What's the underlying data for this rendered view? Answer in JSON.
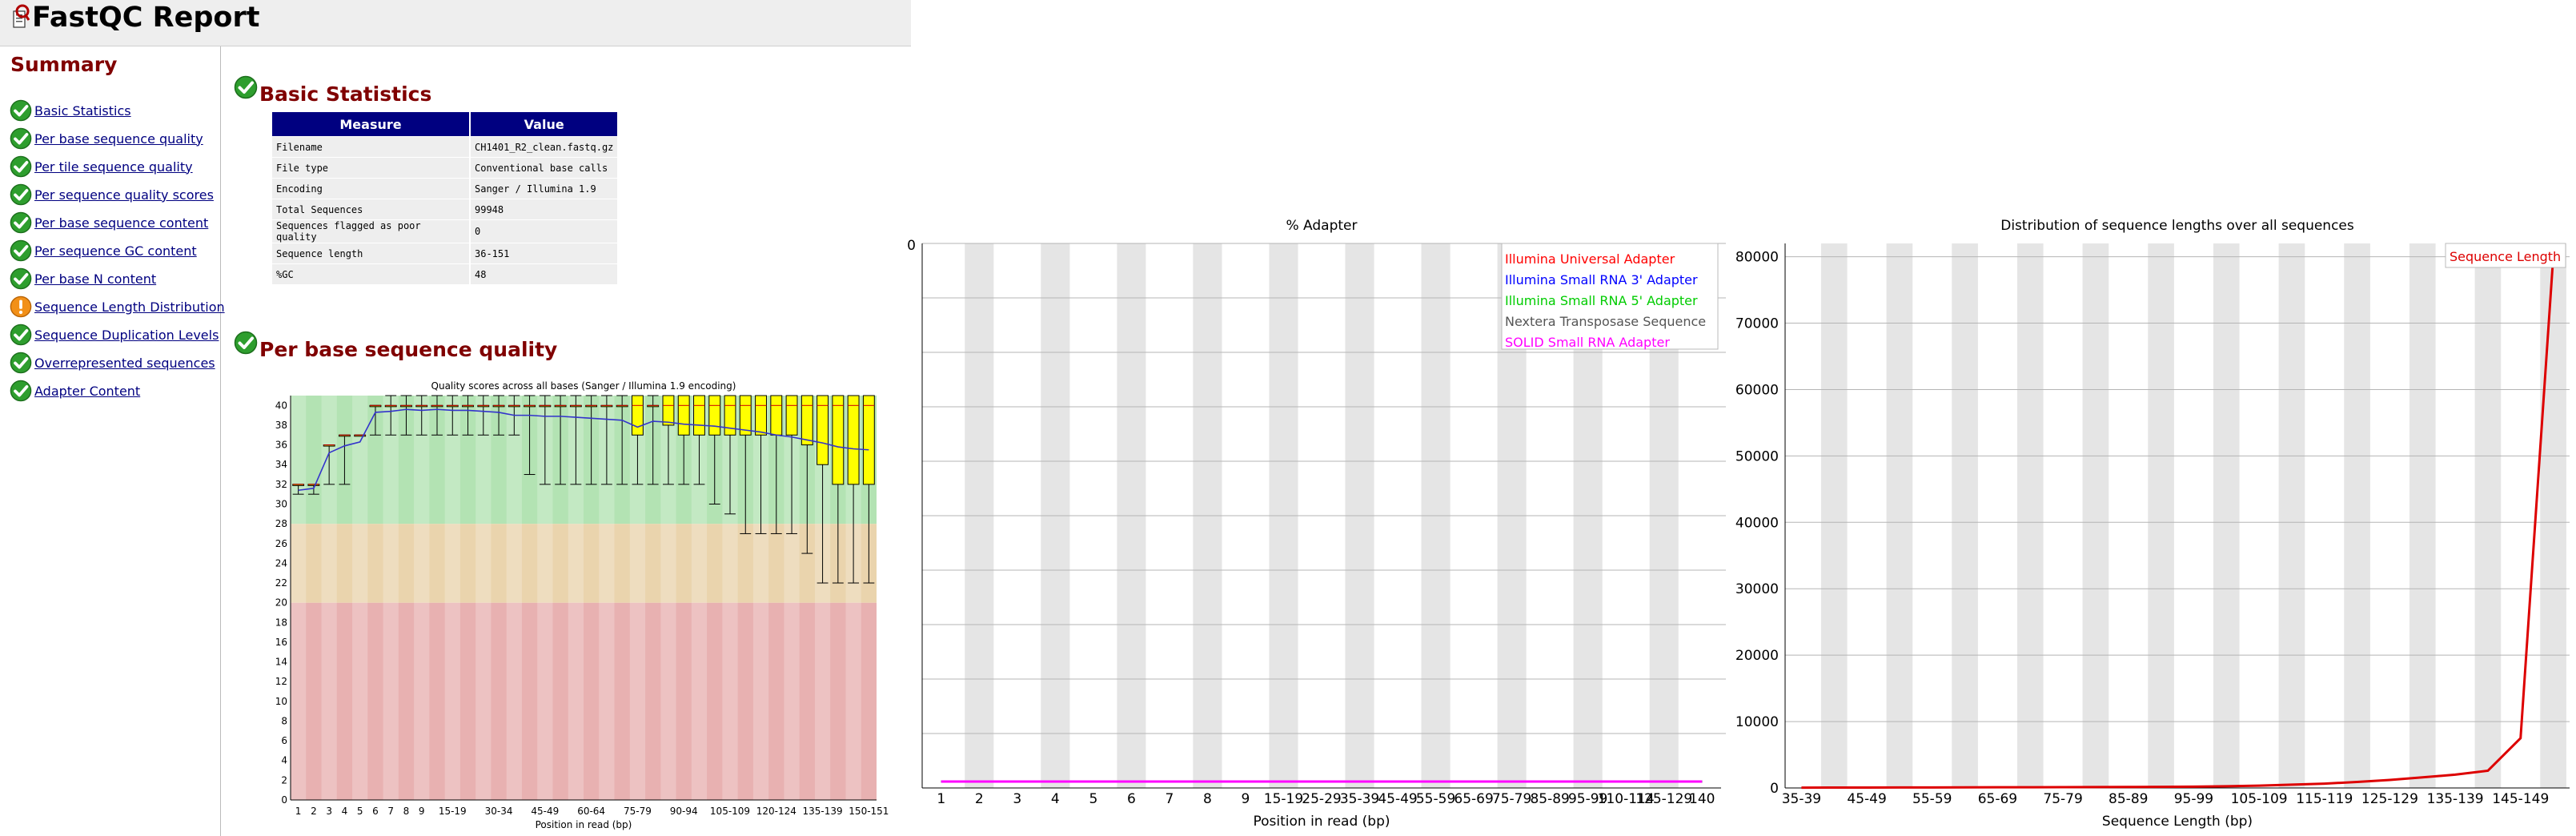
{
  "header": {
    "title": "FastQC Report"
  },
  "summary": {
    "title": "Summary",
    "items": [
      {
        "label": "Basic Statistics",
        "status": "pass"
      },
      {
        "label": "Per base sequence quality",
        "status": "pass"
      },
      {
        "label": "Per tile sequence quality",
        "status": "pass"
      },
      {
        "label": "Per sequence quality scores",
        "status": "pass"
      },
      {
        "label": "Per base sequence content",
        "status": "pass"
      },
      {
        "label": "Per sequence GC content",
        "status": "pass"
      },
      {
        "label": "Per base N content",
        "status": "pass"
      },
      {
        "label": "Sequence Length Distribution",
        "status": "warn"
      },
      {
        "label": "Sequence Duplication Levels",
        "status": "pass"
      },
      {
        "label": "Overrepresented sequences",
        "status": "pass"
      },
      {
        "label": "Adapter Content",
        "status": "pass"
      }
    ]
  },
  "basic_stats": {
    "title": "Basic Statistics",
    "headers": [
      "Measure",
      "Value"
    ],
    "rows": [
      [
        "Filename",
        "CH1401_R2_clean.fastq.gz"
      ],
      [
        "File type",
        "Conventional base calls"
      ],
      [
        "Encoding",
        "Sanger / Illumina 1.9"
      ],
      [
        "Total Sequences",
        "99948"
      ],
      [
        "Sequences flagged as poor quality",
        "0"
      ],
      [
        "Sequence length",
        "36-151"
      ],
      [
        "%GC",
        "48"
      ]
    ]
  },
  "quality_section": {
    "title": "Per base sequence quality"
  },
  "colors": {
    "pass": "#2e9e2e",
    "warn": "#f29018",
    "header_blue": "#000080",
    "title_red": "#800000",
    "zone_green": "#b3e3b3",
    "zone_orange": "#ead4ad",
    "zone_red": "#e8b1b1",
    "box_yellow": "#ffff00",
    "mean_line": "#3333cc",
    "length_line": "#dd0000",
    "adapter_line": "#ff00ff"
  },
  "chart_data": [
    {
      "type": "box",
      "title": "Quality scores across all bases (Sanger / Illumina 1.9 encoding)",
      "xlabel": "Position in read (bp)",
      "ylabel": "",
      "ylim": [
        0,
        41
      ],
      "yticks": [
        0,
        2,
        4,
        6,
        8,
        10,
        12,
        14,
        16,
        18,
        20,
        22,
        24,
        26,
        28,
        30,
        32,
        34,
        36,
        38,
        40
      ],
      "zones": [
        {
          "from": 0,
          "to": 20,
          "color": "red"
        },
        {
          "from": 20,
          "to": 28,
          "color": "orange"
        },
        {
          "from": 28,
          "to": 41,
          "color": "green"
        }
      ],
      "categories": [
        "1",
        "2",
        "3",
        "4",
        "5",
        "6",
        "7",
        "8",
        "9",
        "10-14",
        "15-19",
        "20-24",
        "25-29",
        "30-34",
        "35-39",
        "40-44",
        "45-49",
        "50-54",
        "55-59",
        "60-64",
        "65-69",
        "70-74",
        "75-79",
        "80-84",
        "85-89",
        "90-94",
        "95-99",
        "100-104",
        "105-109",
        "110-114",
        "115-119",
        "120-124",
        "125-129",
        "130-134",
        "135-139",
        "140-144",
        "145-149",
        "150-151"
      ],
      "tick_labels": [
        "1",
        "2",
        "3",
        "4",
        "5",
        "6",
        "7",
        "8",
        "9",
        "15-19",
        "30-34",
        "45-49",
        "60-64",
        "75-79",
        "90-94",
        "105-109",
        "120-124",
        "135-139",
        "150-151"
      ],
      "tick_label_indices": [
        0,
        1,
        2,
        3,
        4,
        5,
        6,
        7,
        8,
        10,
        13,
        16,
        19,
        22,
        25,
        28,
        31,
        34,
        37
      ],
      "mean": [
        31.4,
        31.6,
        35.2,
        35.9,
        36.3,
        39.3,
        39.4,
        39.6,
        39.5,
        39.6,
        39.5,
        39.5,
        39.4,
        39.3,
        39.0,
        39.0,
        38.9,
        38.9,
        38.8,
        38.7,
        38.6,
        38.5,
        37.8,
        38.4,
        38.3,
        38.1,
        38.0,
        37.9,
        37.7,
        37.5,
        37.3,
        37.0,
        36.8,
        36.5,
        36.2,
        35.8,
        35.6,
        35.5
      ],
      "q1": [
        32,
        32,
        36,
        37,
        37,
        40,
        40,
        40,
        40,
        40,
        40,
        40,
        40,
        40,
        40,
        40,
        40,
        40,
        40,
        40,
        40,
        40,
        37,
        40,
        38,
        37,
        37,
        37,
        37,
        37,
        37,
        37,
        37,
        36,
        34,
        32,
        32,
        32
      ],
      "q3": [
        32,
        32,
        36,
        37,
        37,
        40,
        40,
        40,
        40,
        40,
        40,
        40,
        40,
        40,
        40,
        40,
        40,
        40,
        40,
        40,
        40,
        40,
        41,
        40,
        41,
        41,
        41,
        41,
        41,
        41,
        41,
        41,
        41,
        41,
        41,
        41,
        41,
        41
      ],
      "median": [
        32,
        32,
        36,
        37,
        37,
        40,
        40,
        40,
        40,
        40,
        40,
        40,
        40,
        40,
        40,
        40,
        40,
        40,
        40,
        40,
        40,
        40,
        40,
        40,
        40,
        40,
        40,
        40,
        40,
        40,
        40,
        40,
        40,
        40,
        40,
        40,
        40,
        40
      ],
      "low": [
        31,
        31,
        32,
        32,
        37,
        37,
        37,
        37,
        37,
        37,
        37,
        37,
        37,
        37,
        37,
        33,
        32,
        32,
        32,
        32,
        32,
        32,
        32,
        32,
        32,
        32,
        32,
        30,
        29,
        27,
        27,
        27,
        27,
        25,
        22,
        22,
        22,
        22
      ],
      "high": [
        32,
        32,
        36,
        37,
        37,
        40,
        41,
        41,
        41,
        41,
        41,
        41,
        41,
        41,
        41,
        41,
        41,
        41,
        41,
        41,
        41,
        41,
        41,
        41,
        41,
        41,
        41,
        41,
        41,
        41,
        41,
        41,
        41,
        41,
        41,
        41,
        41,
        41
      ]
    },
    {
      "type": "line",
      "title": "% Adapter",
      "xlabel": "Position in read (bp)",
      "ylabel": "",
      "ylim": [
        0,
        100
      ],
      "y_tick_labels": [
        "0"
      ],
      "x_tick_labels": [
        "1",
        "2",
        "3",
        "4",
        "5",
        "6",
        "7",
        "8",
        "9",
        "15-19",
        "25-29",
        "35-39",
        "45-49",
        "55-59",
        "65-69",
        "75-79",
        "85-89",
        "95-99",
        "110-114",
        "125-129",
        "140"
      ],
      "series": [
        {
          "name": "Illumina Universal Adapter",
          "color": "#ff0000",
          "values": [
            0,
            0,
            0,
            0,
            0,
            0,
            0,
            0,
            0,
            0,
            0,
            0,
            0,
            0,
            0,
            0,
            0,
            0,
            0,
            0,
            0
          ]
        },
        {
          "name": "Illumina Small RNA 3' Adapter",
          "color": "#0000ff",
          "values": [
            0,
            0,
            0,
            0,
            0,
            0,
            0,
            0,
            0,
            0,
            0,
            0,
            0,
            0,
            0,
            0,
            0,
            0,
            0,
            0,
            0
          ]
        },
        {
          "name": "Illumina Small RNA 5' Adapter",
          "color": "#00cc00",
          "values": [
            0,
            0,
            0,
            0,
            0,
            0,
            0,
            0,
            0,
            0,
            0,
            0,
            0,
            0,
            0,
            0,
            0,
            0,
            0,
            0,
            0
          ]
        },
        {
          "name": "Nextera Transposase Sequence",
          "color": "#555555",
          "values": [
            0,
            0,
            0,
            0,
            0,
            0,
            0,
            0,
            0,
            0,
            0,
            0,
            0,
            0,
            0,
            0,
            0,
            0,
            0,
            0,
            0
          ]
        },
        {
          "name": "SOLID Small RNA Adapter",
          "color": "#ff00ff",
          "values": [
            0,
            0,
            0,
            0,
            0,
            0,
            0,
            0,
            0,
            0,
            0,
            0,
            0,
            0,
            0,
            0,
            0,
            0,
            0,
            0,
            0
          ]
        }
      ],
      "legend": "top-right",
      "grid": true
    },
    {
      "type": "line",
      "title": "Distribution of sequence lengths over all sequences",
      "xlabel": "Sequence Length (bp)",
      "ylabel": "",
      "ylim": [
        0,
        82000
      ],
      "yticks": [
        0,
        10000,
        20000,
        30000,
        40000,
        50000,
        60000,
        70000,
        80000
      ],
      "x_tick_labels": [
        "35-39",
        "45-49",
        "55-59",
        "65-69",
        "75-79",
        "85-89",
        "95-99",
        "105-109",
        "115-119",
        "125-129",
        "135-139",
        "145-149"
      ],
      "categories": [
        "35-39",
        "40-44",
        "45-49",
        "50-54",
        "55-59",
        "60-64",
        "65-69",
        "70-74",
        "75-79",
        "80-84",
        "85-89",
        "90-94",
        "95-99",
        "100-104",
        "105-109",
        "110-114",
        "115-119",
        "120-124",
        "125-129",
        "130-134",
        "135-139",
        "140-144",
        "145-149",
        "150-151"
      ],
      "series": [
        {
          "name": "Sequence Length",
          "color": "#dd0000",
          "values": [
            50,
            60,
            60,
            70,
            80,
            90,
            100,
            110,
            120,
            130,
            150,
            170,
            200,
            250,
            350,
            500,
            650,
            900,
            1200,
            1600,
            2000,
            2600,
            7500,
            80000
          ]
        }
      ],
      "legend": "top-right",
      "grid": true
    }
  ]
}
